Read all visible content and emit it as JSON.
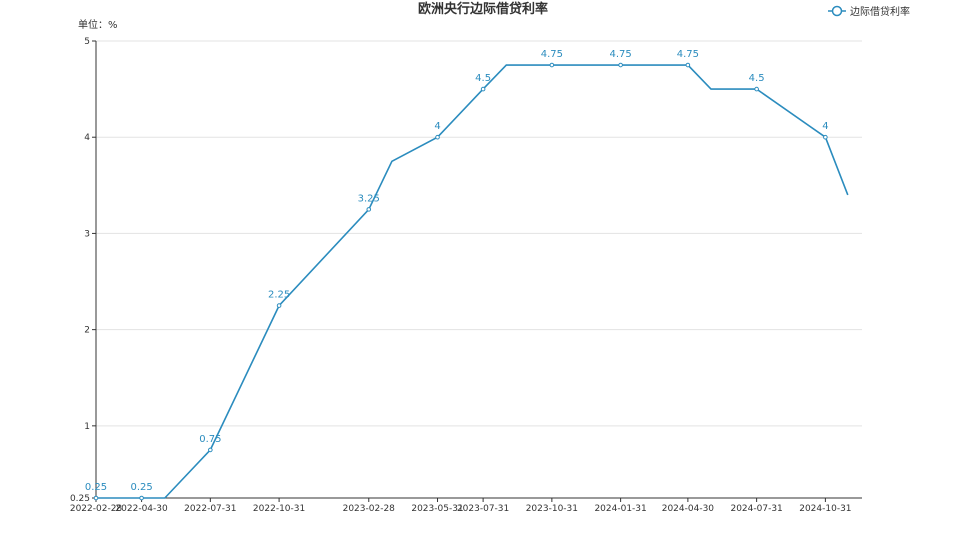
{
  "chart_data": {
    "type": "line",
    "title": "欧洲央行边际借贷利率",
    "unit_label": "单位：%",
    "legend_position": "top-right",
    "grid": true,
    "colors": {
      "line": "#2b8cbe",
      "grid": "#e3e3e3",
      "axis": "#333333"
    },
    "yticks": [
      0.25,
      1,
      2,
      3,
      4,
      5
    ],
    "ylim": [
      0.25,
      5
    ],
    "xticks": [
      "2022-02-28",
      "2022-04-30",
      "2022-07-31",
      "2022-10-31",
      "2023-02-28",
      "2023-05-31",
      "2023-07-31",
      "2023-10-31",
      "2024-01-31",
      "2024-04-30",
      "2024-07-31",
      "2024-10-31"
    ],
    "series": [
      {
        "name": "边际借贷利率",
        "points": [
          {
            "x": "2022-02-28",
            "y": 0.25,
            "label": "0.25"
          },
          {
            "x": "2022-04-30",
            "y": 0.25,
            "label": "0.25"
          },
          {
            "x": "2022-05-31",
            "y": 0.25
          },
          {
            "x": "2022-07-31",
            "y": 0.75,
            "label": "0.75"
          },
          {
            "x": "2022-10-31",
            "y": 2.25,
            "label": "2.25"
          },
          {
            "x": "2023-02-28",
            "y": 3.25,
            "label": "3.25"
          },
          {
            "x": "2023-03-31",
            "y": 3.75
          },
          {
            "x": "2023-05-31",
            "y": 4,
            "label": "4"
          },
          {
            "x": "2023-07-31",
            "y": 4.5,
            "label": "4.5"
          },
          {
            "x": "2023-08-31",
            "y": 4.75
          },
          {
            "x": "2023-10-31",
            "y": 4.75,
            "label": "4.75"
          },
          {
            "x": "2024-01-31",
            "y": 4.75,
            "label": "4.75"
          },
          {
            "x": "2024-04-30",
            "y": 4.75,
            "label": "4.75"
          },
          {
            "x": "2024-05-31",
            "y": 4.5
          },
          {
            "x": "2024-07-31",
            "y": 4.5,
            "label": "4.5"
          },
          {
            "x": "2024-10-31",
            "y": 4,
            "label": "4"
          },
          {
            "x": "2024-11-30",
            "y": 3.4
          }
        ]
      }
    ]
  }
}
